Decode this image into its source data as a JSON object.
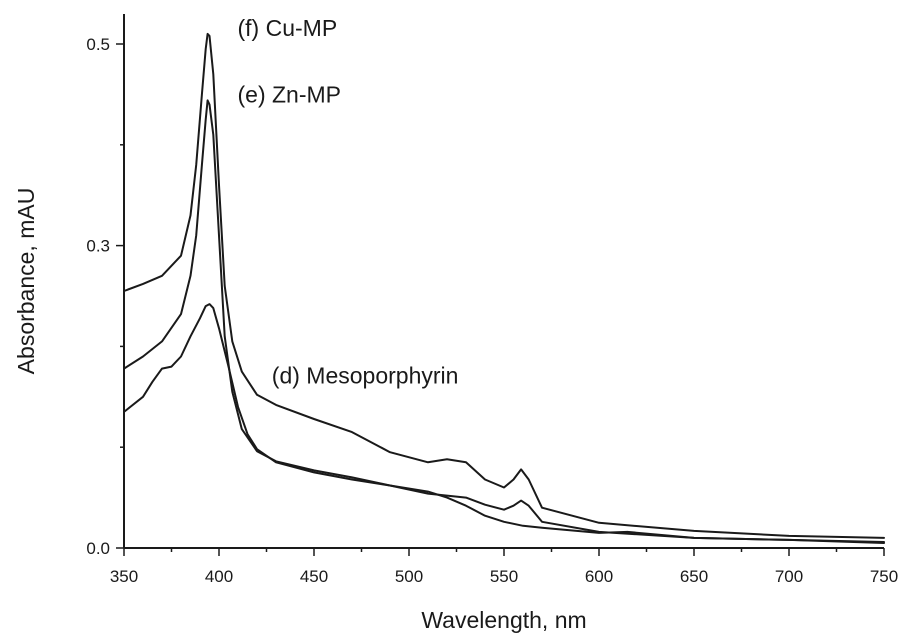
{
  "chart_data": {
    "type": "line",
    "title": "",
    "xlabel": "Wavelength, nm",
    "ylabel": "Absorbance, mAU",
    "xlim": [
      350,
      750
    ],
    "ylim": [
      0.0,
      0.52
    ],
    "x_ticks": [
      "350",
      "400",
      "450",
      "500",
      "550",
      "600",
      "650",
      "700",
      "750"
    ],
    "y_ticks": [
      "0.0",
      "0.3",
      "0.5"
    ],
    "grid": false,
    "series": [
      {
        "name": "(f) Cu-MP",
        "points": [
          [
            350,
            0.255
          ],
          [
            360,
            0.262
          ],
          [
            370,
            0.27
          ],
          [
            380,
            0.29
          ],
          [
            385,
            0.33
          ],
          [
            388,
            0.38
          ],
          [
            391,
            0.45
          ],
          [
            393,
            0.495
          ],
          [
            394,
            0.51
          ],
          [
            395,
            0.508
          ],
          [
            397,
            0.47
          ],
          [
            400,
            0.36
          ],
          [
            403,
            0.26
          ],
          [
            407,
            0.205
          ],
          [
            412,
            0.175
          ],
          [
            420,
            0.152
          ],
          [
            430,
            0.142
          ],
          [
            450,
            0.128
          ],
          [
            470,
            0.115
          ],
          [
            490,
            0.095
          ],
          [
            510,
            0.085
          ],
          [
            520,
            0.088
          ],
          [
            530,
            0.085
          ],
          [
            540,
            0.068
          ],
          [
            550,
            0.06
          ],
          [
            555,
            0.068
          ],
          [
            559,
            0.078
          ],
          [
            563,
            0.068
          ],
          [
            570,
            0.04
          ],
          [
            600,
            0.025
          ],
          [
            650,
            0.017
          ],
          [
            700,
            0.012
          ],
          [
            750,
            0.01
          ]
        ]
      },
      {
        "name": "(e) Zn-MP",
        "points": [
          [
            350,
            0.178
          ],
          [
            360,
            0.19
          ],
          [
            370,
            0.205
          ],
          [
            380,
            0.232
          ],
          [
            385,
            0.27
          ],
          [
            388,
            0.31
          ],
          [
            391,
            0.38
          ],
          [
            393,
            0.425
          ],
          [
            394,
            0.444
          ],
          [
            395,
            0.44
          ],
          [
            397,
            0.41
          ],
          [
            400,
            0.31
          ],
          [
            403,
            0.21
          ],
          [
            407,
            0.155
          ],
          [
            412,
            0.118
          ],
          [
            420,
            0.096
          ],
          [
            430,
            0.086
          ],
          [
            450,
            0.077
          ],
          [
            470,
            0.07
          ],
          [
            490,
            0.062
          ],
          [
            510,
            0.054
          ],
          [
            520,
            0.052
          ],
          [
            530,
            0.05
          ],
          [
            540,
            0.043
          ],
          [
            550,
            0.038
          ],
          [
            555,
            0.042
          ],
          [
            559,
            0.047
          ],
          [
            563,
            0.042
          ],
          [
            570,
            0.026
          ],
          [
            600,
            0.016
          ],
          [
            650,
            0.01
          ],
          [
            700,
            0.008
          ],
          [
            750,
            0.006
          ]
        ]
      },
      {
        "name": "(d) Mesoporphyrin",
        "points": [
          [
            350,
            0.135
          ],
          [
            360,
            0.15
          ],
          [
            365,
            0.165
          ],
          [
            370,
            0.178
          ],
          [
            375,
            0.18
          ],
          [
            380,
            0.19
          ],
          [
            385,
            0.21
          ],
          [
            390,
            0.228
          ],
          [
            393,
            0.24
          ],
          [
            395,
            0.242
          ],
          [
            397,
            0.238
          ],
          [
            400,
            0.218
          ],
          [
            405,
            0.18
          ],
          [
            410,
            0.14
          ],
          [
            415,
            0.113
          ],
          [
            420,
            0.098
          ],
          [
            430,
            0.085
          ],
          [
            450,
            0.075
          ],
          [
            470,
            0.068
          ],
          [
            490,
            0.062
          ],
          [
            510,
            0.056
          ],
          [
            520,
            0.05
          ],
          [
            530,
            0.042
          ],
          [
            540,
            0.032
          ],
          [
            550,
            0.026
          ],
          [
            560,
            0.022
          ],
          [
            570,
            0.02
          ],
          [
            600,
            0.015
          ],
          [
            615,
            0.016
          ],
          [
            650,
            0.01
          ],
          [
            700,
            0.008
          ],
          [
            750,
            0.005
          ]
        ]
      }
    ],
    "series_labels": [
      {
        "text": "(f) Cu-MP",
        "x": 395,
        "y": 0.51
      },
      {
        "text": "(e) Zn-MP",
        "x": 395,
        "y": 0.45
      },
      {
        "text": "(d) Mesoporphyrin",
        "x": 412,
        "y": 0.175
      }
    ]
  }
}
